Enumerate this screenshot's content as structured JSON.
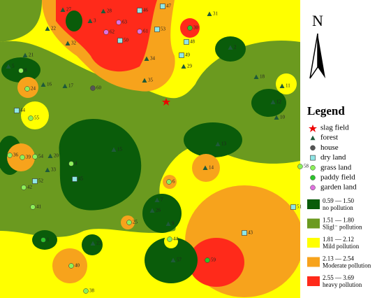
{
  "north": "N",
  "legend": {
    "title": "Legend",
    "items": [
      "slag field",
      "forest",
      "house",
      "dry land",
      "grass land",
      "paddy field",
      "garden land"
    ],
    "classes": [
      {
        "range": "0.59 — 1.50",
        "label": "no pollution"
      },
      {
        "range": "1.51 — 1.80",
        "label": "Sligl⁻ pollution"
      },
      {
        "range": "1.81 — 2.12",
        "label": "Mild pollution"
      },
      {
        "range": "2.13 — 2.54",
        "label": "Moderate pollution"
      },
      {
        "range": "2.55 — 3.69",
        "label": "heavy pollution"
      }
    ]
  },
  "points": [
    "27",
    "28",
    "46",
    "47",
    "31",
    "22",
    "3",
    "63",
    "62",
    "61",
    "50",
    "53",
    "30",
    "32",
    "48",
    "49",
    "2",
    "21",
    "34",
    "29",
    "5",
    "8",
    "18",
    "35",
    "11",
    "16",
    "17",
    "24",
    "60",
    "12",
    "44",
    "55",
    "10",
    "13",
    "15",
    "36",
    "39",
    "54",
    "20",
    "4",
    "33",
    "14",
    "58",
    "52",
    "45",
    "42",
    "6",
    "7",
    "26",
    "41",
    "51",
    "25",
    "9",
    "43",
    "1",
    "44",
    "23",
    "57",
    "59",
    "40",
    "38"
  ]
}
